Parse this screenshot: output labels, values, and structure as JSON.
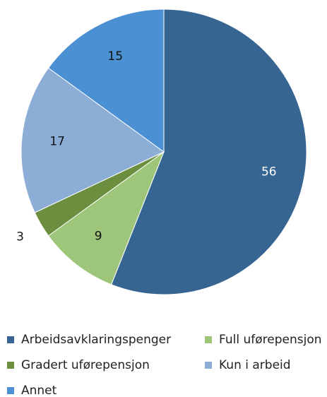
{
  "chart_data": {
    "type": "pie",
    "categories": [
      "Arbeidsavklaringspenger",
      "Full uførepensjon",
      "Gradert uførepensjon",
      "Kun i arbeid",
      "Annet"
    ],
    "values": [
      56,
      9,
      3,
      17,
      15
    ],
    "colors": [
      "#366591",
      "#9dc67a",
      "#6b8f3f",
      "#8cadd6",
      "#4a90d2"
    ]
  }
}
